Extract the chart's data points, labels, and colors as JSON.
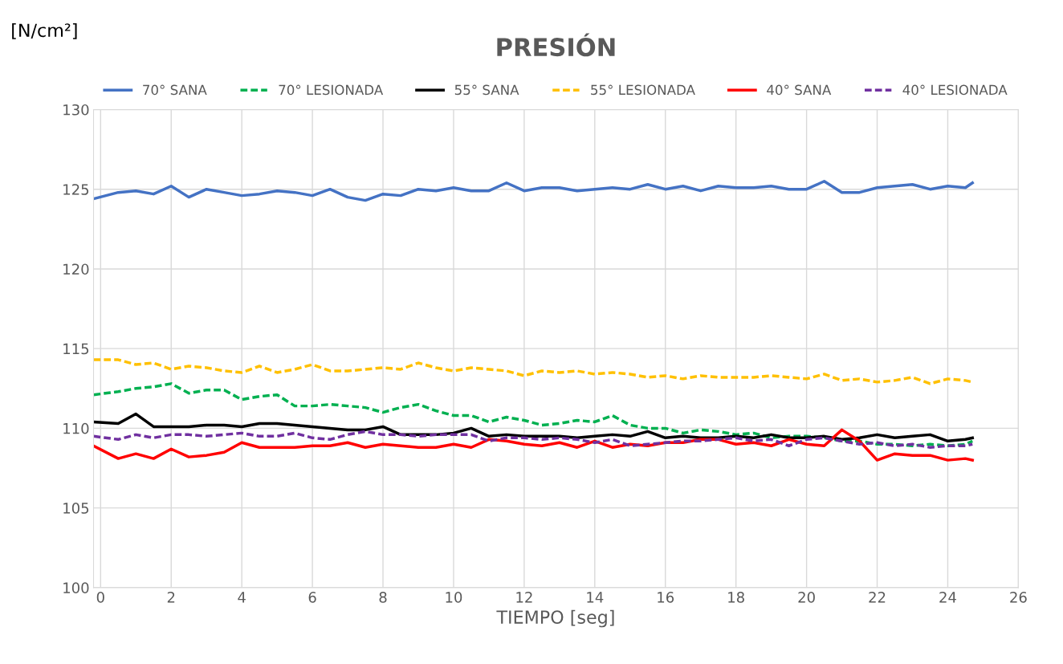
{
  "chart_data": {
    "type": "line",
    "title": "PRESIÓN",
    "xlabel": "TIEMPO [seg]",
    "ylabel": "[N/cm²]",
    "x": [
      -0.2,
      0.5,
      1,
      1.5,
      2,
      2.5,
      3,
      3.5,
      4,
      4.5,
      5,
      5.5,
      6,
      6.5,
      7,
      7.5,
      8,
      8.5,
      9,
      9.5,
      10,
      10.5,
      11,
      11.5,
      12,
      12.5,
      13,
      13.5,
      14,
      14.5,
      15,
      15.5,
      16,
      16.5,
      17,
      17.5,
      18,
      18.5,
      19,
      19.5,
      20,
      20.5,
      21,
      21.5,
      22,
      22.5,
      23,
      23.5,
      24,
      24.5,
      24.7
    ],
    "series": [
      {
        "name": "70° SANA",
        "color": "#4472c4",
        "line_style": "solid",
        "values": [
          124.4,
          124.8,
          124.9,
          124.7,
          125.2,
          124.5,
          125.0,
          124.8,
          124.6,
          124.7,
          124.9,
          124.8,
          124.6,
          125.0,
          124.5,
          124.3,
          124.7,
          124.6,
          125.0,
          124.9,
          125.1,
          124.9,
          124.9,
          125.4,
          124.9,
          125.1,
          125.1,
          124.9,
          125.0,
          125.1,
          125.0,
          125.3,
          125.0,
          125.2,
          124.9,
          125.2,
          125.1,
          125.1,
          125.2,
          125.0,
          125.0,
          125.5,
          124.8,
          124.8,
          125.1,
          125.2,
          125.3,
          125.0,
          125.2,
          125.1,
          125.4
        ]
      },
      {
        "name": "70° LESIONADA",
        "color": "#00b050",
        "line_style": "dashed",
        "values": [
          112.1,
          112.3,
          112.5,
          112.6,
          112.8,
          112.2,
          112.4,
          112.4,
          111.8,
          112.0,
          112.1,
          111.4,
          111.4,
          111.5,
          111.4,
          111.3,
          111.0,
          111.3,
          111.5,
          111.1,
          110.8,
          110.8,
          110.4,
          110.7,
          110.5,
          110.2,
          110.3,
          110.5,
          110.4,
          110.8,
          110.2,
          110.0,
          110.0,
          109.7,
          109.9,
          109.8,
          109.6,
          109.7,
          109.4,
          109.5,
          109.5,
          109.4,
          109.2,
          109.2,
          109.0,
          109.0,
          108.9,
          109.0,
          108.9,
          109.0,
          109.2
        ]
      },
      {
        "name": "55° SANA",
        "color": "#000000",
        "line_style": "solid",
        "values": [
          110.4,
          110.3,
          110.9,
          110.1,
          110.1,
          110.1,
          110.2,
          110.2,
          110.1,
          110.3,
          110.3,
          110.2,
          110.1,
          110.0,
          109.9,
          109.9,
          110.1,
          109.6,
          109.6,
          109.6,
          109.7,
          110.0,
          109.5,
          109.6,
          109.5,
          109.5,
          109.5,
          109.4,
          109.5,
          109.6,
          109.5,
          109.8,
          109.4,
          109.5,
          109.4,
          109.4,
          109.5,
          109.4,
          109.6,
          109.4,
          109.4,
          109.5,
          109.3,
          109.4,
          109.6,
          109.4,
          109.5,
          109.6,
          109.2,
          109.3,
          109.4
        ]
      },
      {
        "name": "55° LESIONADA",
        "color": "#ffc000",
        "line_style": "dashed",
        "values": [
          114.3,
          114.3,
          114.0,
          114.1,
          113.7,
          113.9,
          113.8,
          113.6,
          113.5,
          113.9,
          113.5,
          113.7,
          114.0,
          113.6,
          113.6,
          113.7,
          113.8,
          113.7,
          114.1,
          113.8,
          113.6,
          113.8,
          113.7,
          113.6,
          113.3,
          113.6,
          113.5,
          113.6,
          113.4,
          113.5,
          113.4,
          113.2,
          113.3,
          113.1,
          113.3,
          113.2,
          113.2,
          113.2,
          113.3,
          113.2,
          113.1,
          113.4,
          113.0,
          113.1,
          112.9,
          113.0,
          113.2,
          112.8,
          113.1,
          113.0,
          112.9
        ]
      },
      {
        "name": "40° SANA",
        "color": "#ff0000",
        "line_style": "solid",
        "values": [
          108.9,
          108.1,
          108.4,
          108.1,
          108.7,
          108.2,
          108.3,
          108.5,
          109.1,
          108.8,
          108.8,
          108.8,
          108.9,
          108.9,
          109.1,
          108.8,
          109.0,
          108.9,
          108.8,
          108.8,
          109.0,
          108.8,
          109.3,
          109.2,
          109.0,
          108.9,
          109.1,
          108.8,
          109.2,
          108.8,
          109.0,
          108.9,
          109.1,
          109.1,
          109.3,
          109.3,
          109.0,
          109.1,
          108.9,
          109.3,
          109.0,
          108.9,
          109.9,
          109.2,
          108.0,
          108.4,
          108.3,
          108.3,
          108.0,
          108.1,
          108.0
        ]
      },
      {
        "name": "40° LESIONADA",
        "color": "#7030a0",
        "line_style": "dashed",
        "values": [
          109.5,
          109.3,
          109.6,
          109.4,
          109.6,
          109.6,
          109.5,
          109.6,
          109.7,
          109.5,
          109.5,
          109.7,
          109.4,
          109.3,
          109.6,
          109.8,
          109.6,
          109.6,
          109.5,
          109.6,
          109.6,
          109.6,
          109.2,
          109.4,
          109.4,
          109.3,
          109.4,
          109.3,
          109.1,
          109.3,
          108.9,
          109.0,
          109.1,
          109.2,
          109.2,
          109.3,
          109.4,
          109.2,
          109.3,
          108.9,
          109.3,
          109.4,
          109.2,
          109.0,
          109.1,
          108.9,
          109.0,
          108.8,
          108.9,
          108.9,
          109.0
        ]
      }
    ],
    "xlim": [
      -0.2,
      26
    ],
    "xticks": [
      0,
      2,
      4,
      6,
      8,
      10,
      12,
      14,
      16,
      18,
      20,
      22,
      24,
      26
    ],
    "ylim": [
      100,
      130
    ],
    "yticks": [
      100,
      105,
      110,
      115,
      120,
      125,
      130
    ],
    "grid": true,
    "legend": "top",
    "marker": "none"
  }
}
